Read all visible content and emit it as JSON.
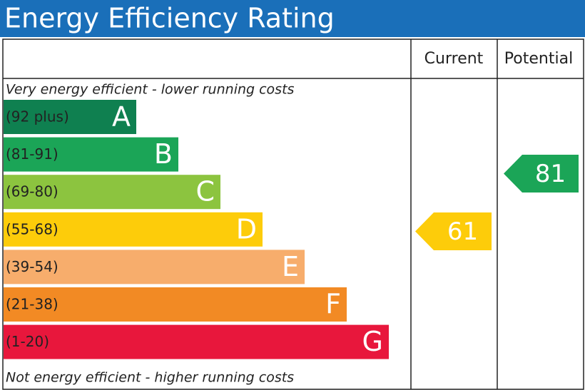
{
  "header": {
    "title": "Energy Efficiency Rating",
    "current_label": "Current",
    "potential_label": "Potential"
  },
  "top_note": "Very energy efficient - lower running costs",
  "bottom_note": "Not energy efficient - higher running costs",
  "bands": [
    {
      "range": "(92 plus)",
      "letter": "A",
      "color": "#0f8050"
    },
    {
      "range": "(81-91)",
      "letter": "B",
      "color": "#1ba557"
    },
    {
      "range": "(69-80)",
      "letter": "C",
      "color": "#8cc43f"
    },
    {
      "range": "(55-68)",
      "letter": "D",
      "color": "#fdcc0a"
    },
    {
      "range": "(39-54)",
      "letter": "E",
      "color": "#f7ad6c"
    },
    {
      "range": "(21-38)",
      "letter": "F",
      "color": "#f28a24"
    },
    {
      "range": "(1-20)",
      "letter": "G",
      "color": "#e8173c"
    }
  ],
  "current": {
    "value": "61",
    "color": "#fdcc0a"
  },
  "potential": {
    "value": "81",
    "color": "#1ba557"
  },
  "title_color": "#1a6fb9"
}
